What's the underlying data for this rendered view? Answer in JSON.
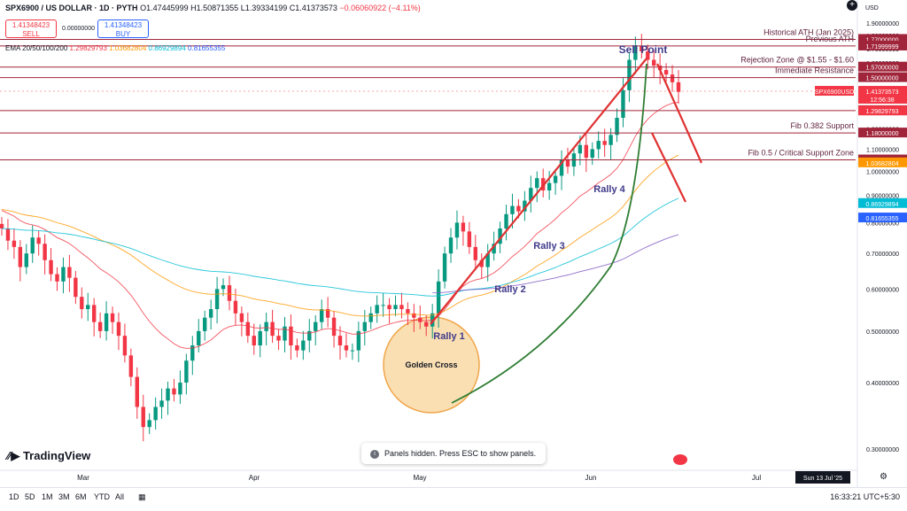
{
  "header": {
    "symbol": "SPX6900 / US DOLLAR · 1D · PYTH",
    "open": "O1.47445999",
    "high": "H1.50871355",
    "low": "L1.39334199",
    "close": "C1.41373573",
    "change": "−0.06060922 (−4.11%)"
  },
  "trade": {
    "sell_price": "1.41348423",
    "sell_label": "SELL",
    "spread": "0.00000000",
    "buy_price": "1.41348423",
    "buy_label": "BUY"
  },
  "ema": {
    "label": "EMA 20/50/100/200",
    "v20": "1.29829793",
    "v50": "1.03682804",
    "v100": "0.86929894",
    "v200": "0.81655355"
  },
  "notice": "Panels hidden. Press ESC to show panels.",
  "brand": "TradingView",
  "currency": "USD",
  "timeframes": [
    "1D",
    "5D",
    "1M",
    "3M",
    "6M",
    "YTD",
    "All"
  ],
  "clock": "16:33:21 UTC+5:30",
  "chart_data": {
    "type": "candlestick",
    "title": "",
    "yscale": "log",
    "ylim": [
      0.27,
      1.95
    ],
    "ytick_labels": [
      "1.90000000",
      "1.80000000",
      "1.70000000",
      "1.60000000",
      "1.50000000",
      "1.40000000",
      "1.30000000",
      "1.20000000",
      "1.10000000",
      "1.00000000",
      "0.90000000",
      "0.80000000",
      "0.70000000",
      "0.60000000",
      "0.50000000",
      "0.40000000",
      "0.30000000"
    ],
    "ytick_values": [
      1.9,
      1.8,
      1.7,
      1.6,
      1.5,
      1.4,
      1.3,
      1.2,
      1.1,
      1.0,
      0.9,
      0.8,
      0.7,
      0.6,
      0.5,
      0.4,
      0.3
    ],
    "xtick_labels": [
      "Mar",
      "Apr",
      "May",
      "Jun",
      "Jul"
    ],
    "x_label_dates": [
      "Mar",
      "Apr",
      "May",
      "Jun",
      "Jul"
    ],
    "date_label": "Sun 13 Jul '25",
    "candles_approx_daily_closes": [
      0.78,
      0.74,
      0.72,
      0.66,
      0.7,
      0.75,
      0.73,
      0.68,
      0.64,
      0.62,
      0.66,
      0.63,
      0.58,
      0.55,
      0.56,
      0.52,
      0.5,
      0.54,
      0.52,
      0.49,
      0.45,
      0.41,
      0.36,
      0.33,
      0.34,
      0.36,
      0.37,
      0.39,
      0.38,
      0.4,
      0.44,
      0.47,
      0.5,
      0.53,
      0.55,
      0.6,
      0.61,
      0.57,
      0.54,
      0.52,
      0.49,
      0.47,
      0.5,
      0.52,
      0.49,
      0.48,
      0.51,
      0.47,
      0.46,
      0.48,
      0.5,
      0.52,
      0.55,
      0.53,
      0.49,
      0.47,
      0.46,
      0.46,
      0.5,
      0.52,
      0.54,
      0.56,
      0.56,
      0.55,
      0.56,
      0.55,
      0.54,
      0.53,
      0.52,
      0.51,
      0.54,
      0.62,
      0.7,
      0.75,
      0.8,
      0.77,
      0.72,
      0.68,
      0.66,
      0.7,
      0.73,
      0.78,
      0.83,
      0.86,
      0.84,
      0.88,
      0.93,
      0.97,
      0.92,
      0.95,
      0.98,
      1.05,
      1.02,
      1.08,
      1.12,
      1.06,
      1.1,
      1.14,
      1.12,
      1.17,
      1.26,
      1.42,
      1.62,
      1.72,
      1.68,
      1.62,
      1.58,
      1.55,
      1.52,
      1.47,
      1.41
    ],
    "levels": [
      {
        "name": "Historical ATH (Jan 2025)",
        "value": 1.77,
        "label": "1.77000000"
      },
      {
        "name": "Previous ATH",
        "value": 1.72,
        "label": "1.71999999"
      },
      {
        "name": "Rejection Zone @ $1.55 - $1.60",
        "value": 1.57,
        "label": "1.57000000"
      },
      {
        "name": "Immediate Resistance",
        "value": 1.5,
        "label": "1.50000000"
      },
      {
        "name": "",
        "value": 1.3,
        "label": "1.30000000"
      },
      {
        "name": "Fib 0.382 Support",
        "value": 1.18,
        "label": "1.18000000"
      },
      {
        "name": "Fib 0.5 / Critical Support Zone",
        "value": 1.05,
        "label": "1.05000000"
      }
    ],
    "price_tags": [
      {
        "name": "SPX6900USD",
        "value": 1.41373573,
        "label": "1.41373573",
        "sub": "12:56:38",
        "color": "#f23645"
      },
      {
        "name": "EMA20",
        "value": 1.29829793,
        "label": "1.29829793",
        "color": "#f23645"
      },
      {
        "name": "EMA50",
        "value": 1.03682804,
        "label": "1.03682804",
        "color": "#ff9800"
      },
      {
        "name": "EMA100",
        "value": 0.86929894,
        "label": "0.86929894",
        "color": "#00bcd4"
      },
      {
        "name": "EMA200",
        "value": 0.81655355,
        "label": "0.81655355",
        "color": "#2962ff"
      }
    ],
    "annotations": [
      "Sell Point",
      "Rally 1",
      "Rally 2",
      "Rally 3",
      "Rally 4",
      "Golden Cross"
    ],
    "colors": {
      "up": "#089981",
      "down": "#f23645",
      "level": "#a0243a",
      "trend": "#e03131",
      "parabola": "#2e7d32",
      "circle": "#f9d9a6"
    }
  }
}
